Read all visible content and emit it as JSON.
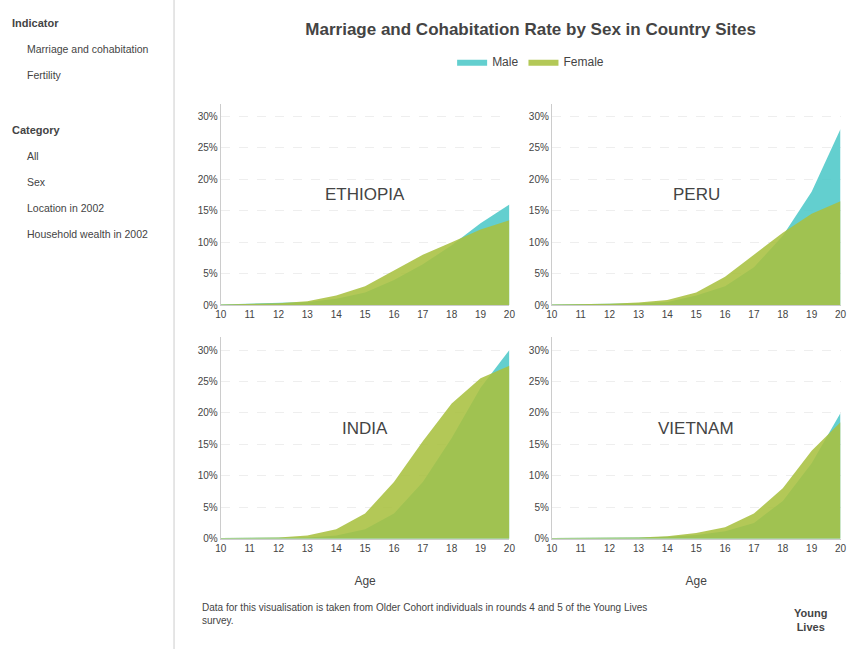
{
  "chart_data": [
    {
      "type": "area",
      "title": "ETHIOPIA",
      "x": [
        10,
        11,
        12,
        13,
        14,
        15,
        16,
        17,
        18,
        19,
        20
      ],
      "series": [
        {
          "name": "Male",
          "color": "#4DC8C8",
          "values": [
            0.001,
            0.002,
            0.003,
            0.005,
            0.01,
            0.02,
            0.04,
            0.065,
            0.095,
            0.13,
            0.16
          ]
        },
        {
          "name": "Female",
          "color": "#A8C040",
          "values": [
            0.001,
            0.002,
            0.003,
            0.006,
            0.015,
            0.03,
            0.055,
            0.08,
            0.1,
            0.12,
            0.135
          ]
        }
      ],
      "xlim": [
        10,
        20
      ],
      "xticks": [
        10,
        11,
        12,
        13,
        14,
        15,
        16,
        17,
        18,
        19,
        20
      ],
      "ylim": [
        0,
        0.32
      ],
      "yticks": [
        {
          "value": 0,
          "label": "0%"
        },
        {
          "value": 0.05,
          "label": "5%"
        },
        {
          "value": 0.1,
          "label": "10%"
        },
        {
          "value": 0.15,
          "label": "15%"
        },
        {
          "value": 0.2,
          "label": "20%"
        },
        {
          "value": 0.25,
          "label": "25%"
        },
        {
          "value": 0.3,
          "label": "30%"
        }
      ],
      "grid": true,
      "legend": "top",
      "annotations": [
        "Marriage and Cohabitation Rate by Sex in Country Sites",
        "Indicator",
        "Marriage and cohabitation",
        "Fertility",
        "Category",
        "All",
        "Sex",
        "Location in 2002",
        "Household wealth in 2002",
        "Data for this visualisation is taken from Older Cohort individuals in rounds 4 and 5 of the Young Lives\nsurvey.",
        "Young\nLives"
      ]
    },
    {
      "type": "area",
      "title": "PERU",
      "x": [
        10,
        11,
        12,
        13,
        14,
        15,
        16,
        17,
        18,
        19,
        20
      ],
      "series": [
        {
          "name": "Male",
          "color": "#4DC8C8",
          "values": [
            0.001,
            0.001,
            0.002,
            0.003,
            0.005,
            0.015,
            0.03,
            0.06,
            0.11,
            0.18,
            0.28
          ]
        },
        {
          "name": "Female",
          "color": "#A8C040",
          "values": [
            0.001,
            0.001,
            0.002,
            0.004,
            0.008,
            0.02,
            0.045,
            0.08,
            0.115,
            0.145,
            0.165
          ]
        }
      ],
      "xlim": [
        10,
        20
      ],
      "xticks": [
        10,
        11,
        12,
        13,
        14,
        15,
        16,
        17,
        18,
        19,
        20
      ],
      "ylim": [
        0,
        0.32
      ],
      "yticks": [
        {
          "value": 0,
          "label": "0%"
        },
        {
          "value": 0.05,
          "label": "5%"
        },
        {
          "value": 0.1,
          "label": "10%"
        },
        {
          "value": 0.15,
          "label": "15%"
        },
        {
          "value": 0.2,
          "label": "20%"
        },
        {
          "value": 0.25,
          "label": "25%"
        },
        {
          "value": 0.3,
          "label": "30%"
        }
      ],
      "grid": true
    },
    {
      "type": "area",
      "title": "INDIA",
      "x": [
        10,
        11,
        12,
        13,
        14,
        15,
        16,
        17,
        18,
        19,
        20
      ],
      "series": [
        {
          "name": "Male",
          "color": "#4DC8C8",
          "values": [
            0.001,
            0.001,
            0.001,
            0.002,
            0.005,
            0.015,
            0.04,
            0.09,
            0.16,
            0.24,
            0.3
          ]
        },
        {
          "name": "Female",
          "color": "#A8C040",
          "values": [
            0.001,
            0.001,
            0.002,
            0.005,
            0.015,
            0.04,
            0.09,
            0.155,
            0.215,
            0.255,
            0.275
          ]
        }
      ],
      "xlabel": "Age",
      "xlim": [
        10,
        20
      ],
      "xticks": [
        10,
        11,
        12,
        13,
        14,
        15,
        16,
        17,
        18,
        19,
        20
      ],
      "ylim": [
        0,
        0.32
      ],
      "yticks": [
        {
          "value": 0,
          "label": "0%"
        },
        {
          "value": 0.05,
          "label": "5%"
        },
        {
          "value": 0.1,
          "label": "10%"
        },
        {
          "value": 0.15,
          "label": "15%"
        },
        {
          "value": 0.2,
          "label": "20%"
        },
        {
          "value": 0.25,
          "label": "25%"
        },
        {
          "value": 0.3,
          "label": "30%"
        }
      ],
      "grid": true
    },
    {
      "type": "area",
      "title": "VIETNAM",
      "x": [
        10,
        11,
        12,
        13,
        14,
        15,
        16,
        17,
        18,
        19,
        20
      ],
      "series": [
        {
          "name": "Male",
          "color": "#4DC8C8",
          "values": [
            0.001,
            0.001,
            0.001,
            0.002,
            0.003,
            0.006,
            0.012,
            0.025,
            0.06,
            0.12,
            0.2
          ]
        },
        {
          "name": "Female",
          "color": "#A8C040",
          "values": [
            0.001,
            0.001,
            0.001,
            0.002,
            0.004,
            0.009,
            0.018,
            0.04,
            0.08,
            0.14,
            0.185
          ]
        }
      ],
      "xlabel": "Age",
      "xlim": [
        10,
        20
      ],
      "xticks": [
        10,
        11,
        12,
        13,
        14,
        15,
        16,
        17,
        18,
        19,
        20
      ],
      "ylim": [
        0,
        0.32
      ],
      "yticks": [
        {
          "value": 0,
          "label": "0%"
        },
        {
          "value": 0.05,
          "label": "5%"
        },
        {
          "value": 0.1,
          "label": "10%"
        },
        {
          "value": 0.15,
          "label": "15%"
        },
        {
          "value": 0.2,
          "label": "20%"
        },
        {
          "value": 0.25,
          "label": "25%"
        },
        {
          "value": 0.3,
          "label": "30%"
        }
      ],
      "grid": true
    }
  ]
}
